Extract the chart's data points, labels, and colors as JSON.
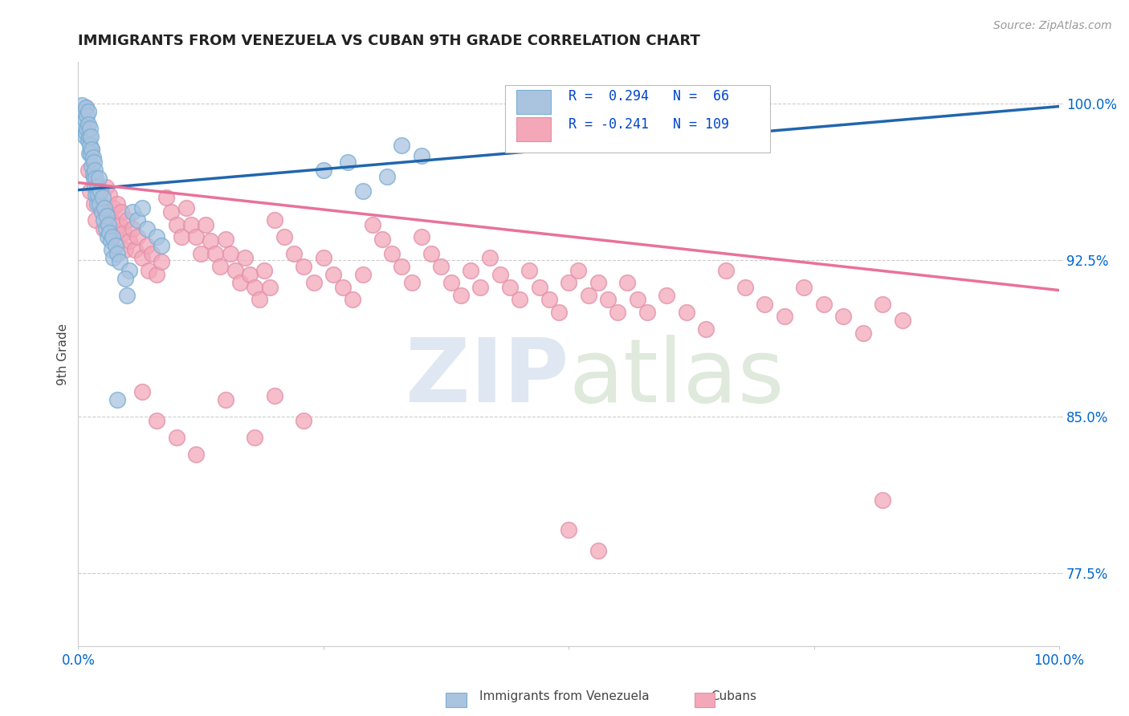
{
  "title": "IMMIGRANTS FROM VENEZUELA VS CUBAN 9TH GRADE CORRELATION CHART",
  "source": "Source: ZipAtlas.com",
  "ylabel": "9th Grade",
  "yticks": [
    "77.5%",
    "85.0%",
    "92.5%",
    "100.0%"
  ],
  "ytick_vals": [
    0.775,
    0.85,
    0.925,
    1.0
  ],
  "venezuela_color": "#aac4e0",
  "venezuela_edge": "#7aafd4",
  "cuba_color": "#f4a7b9",
  "cuba_edge": "#e090a8",
  "venezuela_line_color": "#2166ac",
  "cuba_line_color": "#e8729a",
  "background_color": "#ffffff",
  "grid_color": "#c8c8c8",
  "title_color": "#222222",
  "axis_label_color": "#0066cc",
  "venezuela_line": [
    0.0,
    0.9585,
    1.0,
    0.9985
  ],
  "cuba_line": [
    0.0,
    0.962,
    1.0,
    0.9105
  ],
  "venezuela_points": [
    [
      0.004,
      0.999
    ],
    [
      0.005,
      0.99
    ],
    [
      0.006,
      0.996
    ],
    [
      0.007,
      0.984
    ],
    [
      0.007,
      0.992
    ],
    [
      0.008,
      0.998
    ],
    [
      0.008,
      0.986
    ],
    [
      0.009,
      0.994
    ],
    [
      0.009,
      0.988
    ],
    [
      0.01,
      0.996
    ],
    [
      0.01,
      0.982
    ],
    [
      0.01,
      0.99
    ],
    [
      0.011,
      0.984
    ],
    [
      0.011,
      0.976
    ],
    [
      0.012,
      0.988
    ],
    [
      0.012,
      0.98
    ],
    [
      0.013,
      0.976
    ],
    [
      0.013,
      0.984
    ],
    [
      0.014,
      0.97
    ],
    [
      0.014,
      0.978
    ],
    [
      0.015,
      0.974
    ],
    [
      0.015,
      0.966
    ],
    [
      0.016,
      0.972
    ],
    [
      0.016,
      0.964
    ],
    [
      0.017,
      0.968
    ],
    [
      0.017,
      0.96
    ],
    [
      0.018,
      0.964
    ],
    [
      0.018,
      0.956
    ],
    [
      0.019,
      0.96
    ],
    [
      0.019,
      0.952
    ],
    [
      0.02,
      0.956
    ],
    [
      0.021,
      0.964
    ],
    [
      0.022,
      0.952
    ],
    [
      0.023,
      0.958
    ],
    [
      0.024,
      0.948
    ],
    [
      0.025,
      0.955
    ],
    [
      0.026,
      0.944
    ],
    [
      0.027,
      0.95
    ],
    [
      0.028,
      0.94
    ],
    [
      0.029,
      0.946
    ],
    [
      0.03,
      0.936
    ],
    [
      0.031,
      0.942
    ],
    [
      0.032,
      0.938
    ],
    [
      0.033,
      0.934
    ],
    [
      0.034,
      0.93
    ],
    [
      0.035,
      0.936
    ],
    [
      0.036,
      0.926
    ],
    [
      0.038,
      0.932
    ],
    [
      0.04,
      0.928
    ],
    [
      0.042,
      0.924
    ],
    [
      0.055,
      0.948
    ],
    [
      0.06,
      0.944
    ],
    [
      0.065,
      0.95
    ],
    [
      0.07,
      0.94
    ],
    [
      0.08,
      0.936
    ],
    [
      0.085,
      0.932
    ],
    [
      0.052,
      0.92
    ],
    [
      0.048,
      0.916
    ],
    [
      0.05,
      0.908
    ],
    [
      0.04,
      0.858
    ],
    [
      0.25,
      0.968
    ],
    [
      0.275,
      0.972
    ],
    [
      0.29,
      0.958
    ],
    [
      0.315,
      0.965
    ],
    [
      0.33,
      0.98
    ],
    [
      0.35,
      0.975
    ]
  ],
  "cuba_points": [
    [
      0.008,
      0.998
    ],
    [
      0.01,
      0.968
    ],
    [
      0.012,
      0.958
    ],
    [
      0.014,
      0.978
    ],
    [
      0.016,
      0.952
    ],
    [
      0.018,
      0.944
    ],
    [
      0.02,
      0.96
    ],
    [
      0.022,
      0.956
    ],
    [
      0.024,
      0.95
    ],
    [
      0.026,
      0.94
    ],
    [
      0.028,
      0.96
    ],
    [
      0.03,
      0.948
    ],
    [
      0.032,
      0.956
    ],
    [
      0.034,
      0.944
    ],
    [
      0.036,
      0.95
    ],
    [
      0.038,
      0.938
    ],
    [
      0.04,
      0.952
    ],
    [
      0.042,
      0.942
    ],
    [
      0.044,
      0.948
    ],
    [
      0.046,
      0.938
    ],
    [
      0.048,
      0.93
    ],
    [
      0.05,
      0.944
    ],
    [
      0.052,
      0.934
    ],
    [
      0.055,
      0.94
    ],
    [
      0.058,
      0.93
    ],
    [
      0.06,
      0.936
    ],
    [
      0.065,
      0.926
    ],
    [
      0.07,
      0.932
    ],
    [
      0.072,
      0.92
    ],
    [
      0.075,
      0.928
    ],
    [
      0.08,
      0.918
    ],
    [
      0.085,
      0.924
    ],
    [
      0.09,
      0.955
    ],
    [
      0.095,
      0.948
    ],
    [
      0.1,
      0.942
    ],
    [
      0.105,
      0.936
    ],
    [
      0.11,
      0.95
    ],
    [
      0.115,
      0.942
    ],
    [
      0.12,
      0.936
    ],
    [
      0.125,
      0.928
    ],
    [
      0.13,
      0.942
    ],
    [
      0.135,
      0.934
    ],
    [
      0.14,
      0.928
    ],
    [
      0.145,
      0.922
    ],
    [
      0.15,
      0.935
    ],
    [
      0.155,
      0.928
    ],
    [
      0.16,
      0.92
    ],
    [
      0.165,
      0.914
    ],
    [
      0.17,
      0.926
    ],
    [
      0.175,
      0.918
    ],
    [
      0.18,
      0.912
    ],
    [
      0.185,
      0.906
    ],
    [
      0.19,
      0.92
    ],
    [
      0.195,
      0.912
    ],
    [
      0.2,
      0.944
    ],
    [
      0.21,
      0.936
    ],
    [
      0.22,
      0.928
    ],
    [
      0.23,
      0.922
    ],
    [
      0.24,
      0.914
    ],
    [
      0.25,
      0.926
    ],
    [
      0.26,
      0.918
    ],
    [
      0.27,
      0.912
    ],
    [
      0.28,
      0.906
    ],
    [
      0.29,
      0.918
    ],
    [
      0.3,
      0.942
    ],
    [
      0.31,
      0.935
    ],
    [
      0.32,
      0.928
    ],
    [
      0.33,
      0.922
    ],
    [
      0.34,
      0.914
    ],
    [
      0.35,
      0.936
    ],
    [
      0.36,
      0.928
    ],
    [
      0.37,
      0.922
    ],
    [
      0.38,
      0.914
    ],
    [
      0.39,
      0.908
    ],
    [
      0.4,
      0.92
    ],
    [
      0.41,
      0.912
    ],
    [
      0.42,
      0.926
    ],
    [
      0.43,
      0.918
    ],
    [
      0.44,
      0.912
    ],
    [
      0.45,
      0.906
    ],
    [
      0.46,
      0.92
    ],
    [
      0.47,
      0.912
    ],
    [
      0.48,
      0.906
    ],
    [
      0.49,
      0.9
    ],
    [
      0.5,
      0.914
    ],
    [
      0.51,
      0.92
    ],
    [
      0.52,
      0.908
    ],
    [
      0.53,
      0.914
    ],
    [
      0.54,
      0.906
    ],
    [
      0.55,
      0.9
    ],
    [
      0.56,
      0.914
    ],
    [
      0.57,
      0.906
    ],
    [
      0.58,
      0.9
    ],
    [
      0.6,
      0.908
    ],
    [
      0.62,
      0.9
    ],
    [
      0.64,
      0.892
    ],
    [
      0.66,
      0.92
    ],
    [
      0.68,
      0.912
    ],
    [
      0.7,
      0.904
    ],
    [
      0.72,
      0.898
    ],
    [
      0.74,
      0.912
    ],
    [
      0.76,
      0.904
    ],
    [
      0.78,
      0.898
    ],
    [
      0.8,
      0.89
    ],
    [
      0.82,
      0.904
    ],
    [
      0.84,
      0.896
    ],
    [
      0.065,
      0.862
    ],
    [
      0.08,
      0.848
    ],
    [
      0.1,
      0.84
    ],
    [
      0.12,
      0.832
    ],
    [
      0.15,
      0.858
    ],
    [
      0.18,
      0.84
    ],
    [
      0.2,
      0.86
    ],
    [
      0.23,
      0.848
    ],
    [
      0.5,
      0.796
    ],
    [
      0.53,
      0.786
    ],
    [
      0.82,
      0.81
    ]
  ]
}
